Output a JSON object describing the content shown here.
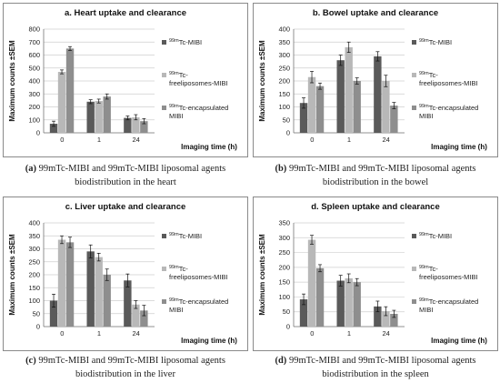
{
  "chart_data": [
    {
      "type": "bar",
      "title": "a. Heart uptake and clearance",
      "xlabel": "Imaging time (h)",
      "ylabel": "Maximum counts ±SEM",
      "categories": [
        "0",
        "1",
        "24"
      ],
      "ylim": [
        0,
        800
      ],
      "yticks": [
        0,
        100,
        200,
        300,
        400,
        500,
        600,
        700,
        800
      ],
      "legend_position": "right",
      "series": [
        {
          "name": "99mTc-MIBI",
          "color": "#5a5a5a",
          "values": [
            70,
            240,
            115
          ],
          "errors": [
            20,
            15,
            15
          ]
        },
        {
          "name": "99mTc-freeliposomes-MIBI",
          "color": "#b8b8b8",
          "values": [
            470,
            245,
            120
          ],
          "errors": [
            15,
            15,
            20
          ]
        },
        {
          "name": "99mTc-encapsulated MIBI",
          "color": "#8e8e8e",
          "values": [
            650,
            280,
            90
          ],
          "errors": [
            15,
            20,
            20
          ]
        }
      ],
      "caption": {
        "label": "(a)",
        "text": "99mTc-MIBI and 99mTc-MIBI liposomal agents biodistribution in the heart"
      }
    },
    {
      "type": "bar",
      "title": "b. Bowel uptake and clearance",
      "xlabel": "Imaging time (h)",
      "ylabel": "Maximum counts ±SEM",
      "categories": [
        "0",
        "1",
        "24"
      ],
      "ylim": [
        0,
        400
      ],
      "yticks": [
        0,
        50,
        100,
        150,
        200,
        250,
        300,
        350,
        400
      ],
      "legend_position": "right",
      "series": [
        {
          "name": "99mTc-MIBI",
          "color": "#5a5a5a",
          "values": [
            115,
            280,
            295
          ],
          "errors": [
            20,
            20,
            18
          ]
        },
        {
          "name": "99mTc-freeliposomes-MIBI",
          "color": "#b8b8b8",
          "values": [
            215,
            330,
            200
          ],
          "errors": [
            22,
            20,
            22
          ]
        },
        {
          "name": "99mTc-encapsulated MIBI",
          "color": "#8e8e8e",
          "values": [
            180,
            200,
            105
          ],
          "errors": [
            12,
            12,
            12
          ]
        }
      ],
      "caption": {
        "label": "(b)",
        "text": "99mTc-MIBI and 99mTc-MIBI liposomal agents biodistribution in the bowel"
      }
    },
    {
      "type": "bar",
      "title": "c. Liver uptake and clearance",
      "xlabel": "Imaging time (h)",
      "ylabel": "Maximum counts ±SEM",
      "categories": [
        "0",
        "1",
        "24"
      ],
      "ylim": [
        0,
        400
      ],
      "yticks": [
        0,
        50,
        100,
        150,
        200,
        250,
        300,
        350,
        400
      ],
      "legend_position": "right",
      "series": [
        {
          "name": "99mTc-MIBI",
          "color": "#5a5a5a",
          "values": [
            100,
            290,
            178
          ],
          "errors": [
            25,
            25,
            25
          ]
        },
        {
          "name": "99mTc-freeliposomes-MIBI",
          "color": "#b8b8b8",
          "values": [
            335,
            268,
            85
          ],
          "errors": [
            15,
            15,
            15
          ]
        },
        {
          "name": "99mTc-encapsulated MIBI",
          "color": "#8e8e8e",
          "values": [
            325,
            200,
            62
          ],
          "errors": [
            20,
            22,
            20
          ]
        }
      ],
      "caption": {
        "label": "(c)",
        "text": "99mTc-MIBI and 99mTc-MIBI liposomal agents biodistribution in the liver"
      }
    },
    {
      "type": "bar",
      "title": "d. Spleen uptake and clearance",
      "xlabel": "Imaging time (h)",
      "ylabel": "Maximum counts ±SEM",
      "categories": [
        "0",
        "1",
        "24"
      ],
      "ylim": [
        0,
        350
      ],
      "yticks": [
        0,
        50,
        100,
        150,
        200,
        250,
        300,
        350
      ],
      "legend_position": "right",
      "series": [
        {
          "name": "99mTc-MIBI",
          "color": "#5a5a5a",
          "values": [
            92,
            155,
            68
          ],
          "errors": [
            18,
            18,
            18
          ]
        },
        {
          "name": "99mTc-freeliposomes-MIBI",
          "color": "#b8b8b8",
          "values": [
            293,
            163,
            52
          ],
          "errors": [
            15,
            15,
            15
          ]
        },
        {
          "name": "99mTc-encapsulated MIBI",
          "color": "#8e8e8e",
          "values": [
            197,
            150,
            43
          ],
          "errors": [
            12,
            12,
            12
          ]
        }
      ],
      "caption": {
        "label": "(d)",
        "text": "99mTc-MIBI and 99mTc-MIBI liposomal agents biodistribution in the spleen"
      }
    }
  ]
}
